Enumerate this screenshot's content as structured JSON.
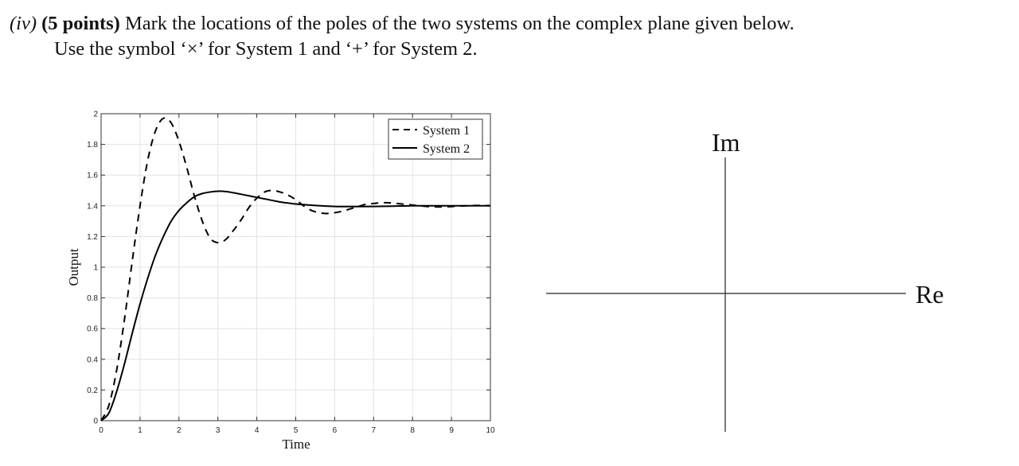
{
  "question": {
    "number": "(iv)",
    "points": "(5 points)",
    "line1_rest": "Mark the locations of the poles of the two systems on the complex plane given below.",
    "line2": "Use the symbol ‘×’ for System 1 and ‘+’ for System 2."
  },
  "chart_data": {
    "type": "line",
    "title": "",
    "xlabel": "Time",
    "ylabel": "Output",
    "xlim": [
      0,
      10
    ],
    "ylim": [
      0,
      2
    ],
    "xticks": [
      0,
      1,
      2,
      3,
      4,
      5,
      6,
      7,
      8,
      9,
      10
    ],
    "yticks": [
      0,
      0.2,
      0.4,
      0.6,
      0.8,
      1,
      1.2,
      1.4,
      1.6,
      1.8,
      2
    ],
    "grid": true,
    "legend_position": "top-right",
    "series": [
      {
        "name": "System 1",
        "style": "dashed",
        "x": [
          0,
          0.2,
          0.4,
          0.6,
          0.8,
          1.0,
          1.2,
          1.4,
          1.6,
          1.8,
          2.0,
          2.2,
          2.4,
          2.6,
          2.8,
          3.0,
          3.2,
          3.4,
          3.6,
          3.8,
          4.0,
          4.2,
          4.4,
          4.6,
          4.8,
          5.0,
          5.2,
          5.4,
          5.6,
          5.8,
          6.0,
          6.2,
          6.4,
          6.6,
          6.8,
          7.0,
          7.2,
          7.4,
          7.6,
          7.8,
          8.0,
          8.2,
          8.4,
          8.6,
          8.8,
          9.0,
          9.2,
          9.4,
          9.6,
          9.8,
          10.0
        ],
        "values": [
          0,
          0.1,
          0.33,
          0.66,
          1.04,
          1.4,
          1.7,
          1.89,
          1.97,
          1.94,
          1.82,
          1.65,
          1.46,
          1.3,
          1.19,
          1.16,
          1.18,
          1.24,
          1.31,
          1.39,
          1.45,
          1.49,
          1.5,
          1.49,
          1.47,
          1.44,
          1.4,
          1.37,
          1.355,
          1.35,
          1.355,
          1.365,
          1.38,
          1.395,
          1.41,
          1.415,
          1.42,
          1.42,
          1.415,
          1.41,
          1.405,
          1.4,
          1.395,
          1.393,
          1.393,
          1.395,
          1.398,
          1.4,
          1.402,
          1.402,
          1.401
        ]
      },
      {
        "name": "System 2",
        "style": "solid",
        "x": [
          0,
          0.2,
          0.4,
          0.6,
          0.8,
          1.0,
          1.2,
          1.4,
          1.6,
          1.8,
          2.0,
          2.2,
          2.4,
          2.6,
          2.8,
          3.0,
          3.2,
          3.4,
          3.6,
          3.8,
          4.0,
          4.2,
          4.4,
          4.6,
          4.8,
          5.0,
          5.5,
          6.0,
          6.5,
          7.0,
          7.5,
          8.0,
          8.5,
          9.0,
          9.5,
          10.0
        ],
        "values": [
          0,
          0.05,
          0.19,
          0.37,
          0.57,
          0.76,
          0.93,
          1.08,
          1.2,
          1.3,
          1.37,
          1.42,
          1.46,
          1.48,
          1.49,
          1.495,
          1.493,
          1.485,
          1.475,
          1.465,
          1.455,
          1.445,
          1.435,
          1.425,
          1.418,
          1.412,
          1.402,
          1.396,
          1.395,
          1.396,
          1.398,
          1.4,
          1.4,
          1.4,
          1.4,
          1.4
        ]
      }
    ]
  },
  "complex_plane": {
    "re_label": "Re",
    "im_label": "Im"
  }
}
